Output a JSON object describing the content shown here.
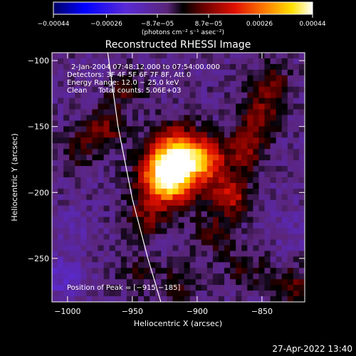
{
  "chart_data": {
    "type": "heatmap",
    "title": "Reconstructed RHESSI Image",
    "xlabel": "Heliocentric X (arcsec)",
    "ylabel": "Heliocentric Y (arcsec)",
    "xlim": [
      -1012,
      -817
    ],
    "ylim": [
      -283,
      -94
    ],
    "x_ticks": [
      -1000,
      -950,
      -900,
      -850
    ],
    "x_tick_labels": [
      "−1000",
      "−950",
      "−900",
      "−850"
    ],
    "y_ticks": [
      -100,
      -150,
      -200,
      -250
    ],
    "y_tick_labels": [
      "−100",
      "−150",
      "−200",
      "−250"
    ],
    "colorbar": {
      "range": [
        -0.00044,
        0.00044
      ],
      "ticks": [
        -0.00044,
        -0.00026,
        -8.7e-05,
        8.7e-05,
        0.00026,
        0.00044
      ],
      "tick_labels": [
        "−0.00044",
        "−0.00026",
        "−8.7e−05",
        "8.7e−05",
        "0.00026",
        "0.00044"
      ],
      "units": "(photons cm⁻² s⁻¹ asec⁻²)"
    },
    "annotations": {
      "time": "2-Jan-2004 07:48:12.000 to 07:54:00.000",
      "detectors": "Detectors: 3F 4F 5F 6F 7F 8F, Att 0",
      "energy": "Energy Range: 12.0 − 25.0 keV",
      "clean": "Clean     Total counts: 5.06E+03",
      "peak": "Position of Peak = [−915,−185]"
    },
    "peak_position": [
      -915,
      -185
    ],
    "emission_blobs": [
      {
        "x": -923,
        "y": -190,
        "value": 0.00044
      },
      {
        "x": -915,
        "y": -172,
        "value": 0.00038
      },
      {
        "x": -893,
        "y": -176,
        "value": 0.00026
      },
      {
        "x": -875,
        "y": -202,
        "value": 0.00022
      },
      {
        "x": -862,
        "y": -168,
        "value": 0.00017
      },
      {
        "x": -852,
        "y": -142,
        "value": 0.00015
      },
      {
        "x": -843,
        "y": -118,
        "value": 0.00012
      },
      {
        "x": -972,
        "y": -152,
        "value": 0.00015
      },
      {
        "x": -957,
        "y": -122,
        "value": 0.0001
      },
      {
        "x": -993,
        "y": -168,
        "value": 8e-05
      },
      {
        "x": -940,
        "y": -220,
        "value": 0.00012
      },
      {
        "x": -888,
        "y": -232,
        "value": 0.0001
      },
      {
        "x": -862,
        "y": -258,
        "value": 9e-05
      },
      {
        "x": -826,
        "y": -272,
        "value": 0.00012
      },
      {
        "x": -947,
        "y": -262,
        "value": 7e-05
      },
      {
        "x": -912,
        "y": -268,
        "value": 9e-05
      },
      {
        "x": -1003,
        "y": -265,
        "value": -9e-05
      },
      {
        "x": -998,
        "y": -228,
        "value": -4e-05
      },
      {
        "x": -975,
        "y": -110,
        "value": -3e-05
      },
      {
        "x": -828,
        "y": -228,
        "value": -4e-05
      }
    ],
    "limb_curve": [
      {
        "x": -969,
        "y": -94
      },
      {
        "x": -961,
        "y": -150
      },
      {
        "x": -950,
        "y": -205
      },
      {
        "x": -938,
        "y": -250
      },
      {
        "x": -928,
        "y": -283
      }
    ],
    "limb_color": "#ffffff",
    "background_color": "#000000",
    "text_color": "#ffffff"
  },
  "footer": {
    "date": "27-Apr-2022 13:40"
  }
}
